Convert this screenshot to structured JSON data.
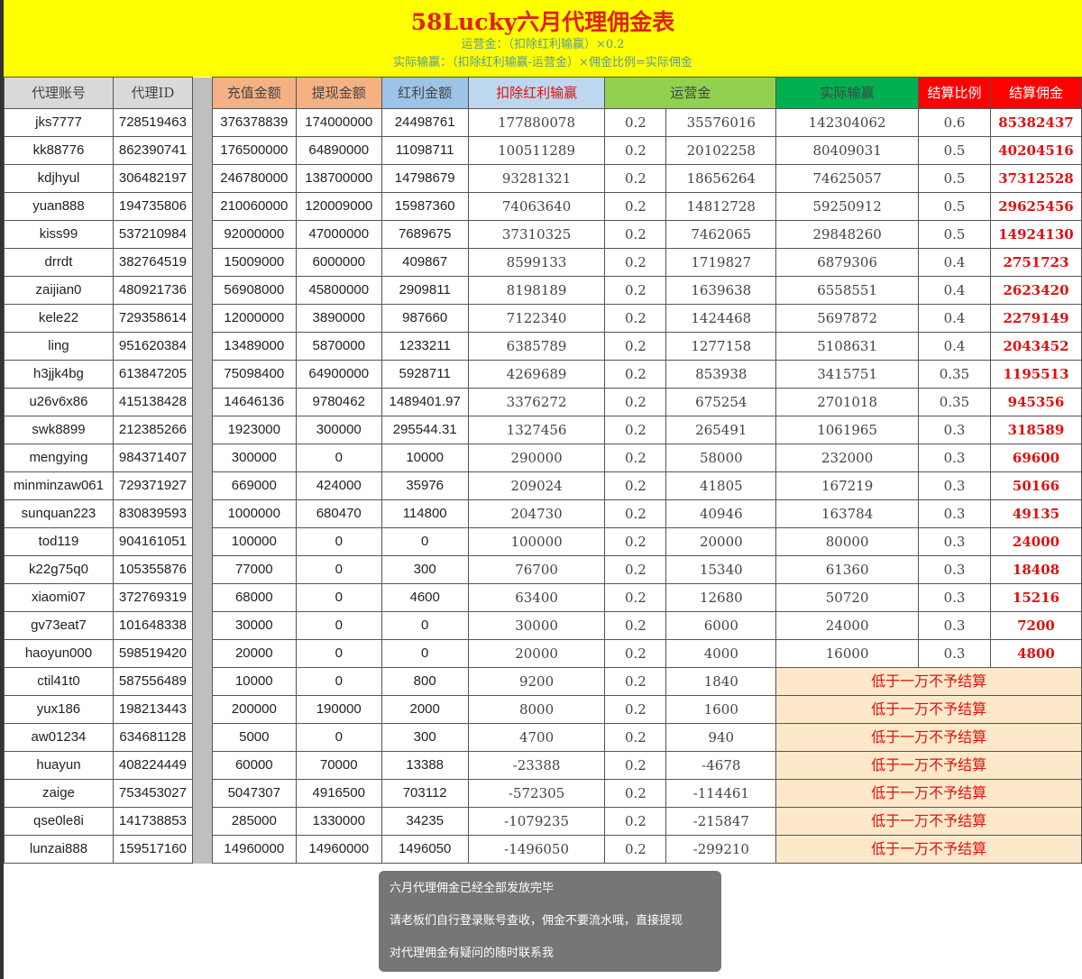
{
  "banner": {
    "title": "58Lucky六月代理佣金表",
    "formula1": "运营金：（扣除红利输赢）×0.2",
    "formula2": "实际输赢：（扣除红利输赢-运营金）×佣金比例=实际佣金"
  },
  "headers": {
    "account": "代理账号",
    "agent_id": "代理ID",
    "deposit": "充值金额",
    "withdraw": "提现金额",
    "bonus": "红利金额",
    "net_after_bonus": "扣除红利输赢",
    "operating_fee": "运营金",
    "actual_net": "实际输赢",
    "rate": "结算比例",
    "commission": "结算佣金"
  },
  "colors": {
    "banner": "#ffff00",
    "header_gray": "#d9d9d9",
    "header_peach": "#f4b183",
    "header_blue": "#9dc3e6",
    "header_lightblue": "#bdd7ee",
    "header_green": "#92d050",
    "header_darkgreen": "#00b050",
    "header_red": "#ff0000",
    "commission_text": "#e01010",
    "below_threshold_bg": "#fde9c9"
  },
  "below_threshold_note": "低于一万不予结算",
  "rows": [
    [
      "jks7777",
      "728519463",
      "376378839",
      "174000000",
      "24498761",
      "177880078",
      "0.2",
      "35576016",
      "142304062",
      "0.6",
      "85382437"
    ],
    [
      "kk88776",
      "862390741",
      "176500000",
      "64890000",
      "11098711",
      "100511289",
      "0.2",
      "20102258",
      "80409031",
      "0.5",
      "40204516"
    ],
    [
      "kdjhyul",
      "306482197",
      "246780000",
      "138700000",
      "14798679",
      "93281321",
      "0.2",
      "18656264",
      "74625057",
      "0.5",
      "37312528"
    ],
    [
      "yuan888",
      "194735806",
      "210060000",
      "120009000",
      "15987360",
      "74063640",
      "0.2",
      "14812728",
      "59250912",
      "0.5",
      "29625456"
    ],
    [
      "kiss99",
      "537210984",
      "92000000",
      "47000000",
      "7689675",
      "37310325",
      "0.2",
      "7462065",
      "29848260",
      "0.5",
      "14924130"
    ],
    [
      "drrdt",
      "382764519",
      "15009000",
      "6000000",
      "409867",
      "8599133",
      "0.2",
      "1719827",
      "6879306",
      "0.4",
      "2751723"
    ],
    [
      "zaijian0",
      "480921736",
      "56908000",
      "45800000",
      "2909811",
      "8198189",
      "0.2",
      "1639638",
      "6558551",
      "0.4",
      "2623420"
    ],
    [
      "kele22",
      "729358614",
      "12000000",
      "3890000",
      "987660",
      "7122340",
      "0.2",
      "1424468",
      "5697872",
      "0.4",
      "2279149"
    ],
    [
      "ling",
      "951620384",
      "13489000",
      "5870000",
      "1233211",
      "6385789",
      "0.2",
      "1277158",
      "5108631",
      "0.4",
      "2043452"
    ],
    [
      "h3jjk4bg",
      "613847205",
      "75098400",
      "64900000",
      "5928711",
      "4269689",
      "0.2",
      "853938",
      "3415751",
      "0.35",
      "1195513"
    ],
    [
      "u26v6x86",
      "415138428",
      "14646136",
      "9780462",
      "1489401.97",
      "3376272",
      "0.2",
      "675254",
      "2701018",
      "0.35",
      "945356"
    ],
    [
      "swk8899",
      "212385266",
      "1923000",
      "300000",
      "295544.31",
      "1327456",
      "0.2",
      "265491",
      "1061965",
      "0.3",
      "318589"
    ],
    [
      "mengying",
      "984371407",
      "300000",
      "0",
      "10000",
      "290000",
      "0.2",
      "58000",
      "232000",
      "0.3",
      "69600"
    ],
    [
      "minminzaw061",
      "729371927",
      "669000",
      "424000",
      "35976",
      "209024",
      "0.2",
      "41805",
      "167219",
      "0.3",
      "50166"
    ],
    [
      "sunquan223",
      "830839593",
      "1000000",
      "680470",
      "114800",
      "204730",
      "0.2",
      "40946",
      "163784",
      "0.3",
      "49135"
    ],
    [
      "tod119",
      "904161051",
      "100000",
      "0",
      "0",
      "100000",
      "0.2",
      "20000",
      "80000",
      "0.3",
      "24000"
    ],
    [
      "k22g75q0",
      "105355876",
      "77000",
      "0",
      "300",
      "76700",
      "0.2",
      "15340",
      "61360",
      "0.3",
      "18408"
    ],
    [
      "xiaomi07",
      "372769319",
      "68000",
      "0",
      "4600",
      "63400",
      "0.2",
      "12680",
      "50720",
      "0.3",
      "15216"
    ],
    [
      "gv73eat7",
      "101648338",
      "30000",
      "0",
      "0",
      "30000",
      "0.2",
      "6000",
      "24000",
      "0.3",
      "7200"
    ],
    [
      "haoyun000",
      "598519420",
      "20000",
      "0",
      "0",
      "20000",
      "0.2",
      "4000",
      "16000",
      "0.3",
      "4800"
    ],
    [
      "ctil41t0",
      "587556489",
      "10000",
      "0",
      "800",
      "9200",
      "0.2",
      "1840"
    ],
    [
      "yux186",
      "198213443",
      "200000",
      "190000",
      "2000",
      "8000",
      "0.2",
      "1600"
    ],
    [
      "aw01234",
      "634681128",
      "5000",
      "0",
      "300",
      "4700",
      "0.2",
      "940"
    ],
    [
      "huayun",
      "408224449",
      "60000",
      "70000",
      "13388",
      "-23388",
      "0.2",
      "-4678"
    ],
    [
      "zaige",
      "753453027",
      "5047307",
      "4916500",
      "703112",
      "-572305",
      "0.2",
      "-114461"
    ],
    [
      "qse0le8i",
      "141738853",
      "285000",
      "1330000",
      "34235",
      "-1079235",
      "0.2",
      "-215847"
    ],
    [
      "lunzai888",
      "159517160",
      "14960000",
      "14960000",
      "1496050",
      "-1496050",
      "0.2",
      "-299210"
    ]
  ],
  "toast": {
    "line1": "六月代理佣金已经全部发放完毕",
    "line2": "请老板们自行登录账号查收，佣金不要流水哦，直接提现",
    "line3": "对代理佣金有疑问的随时联系我"
  }
}
